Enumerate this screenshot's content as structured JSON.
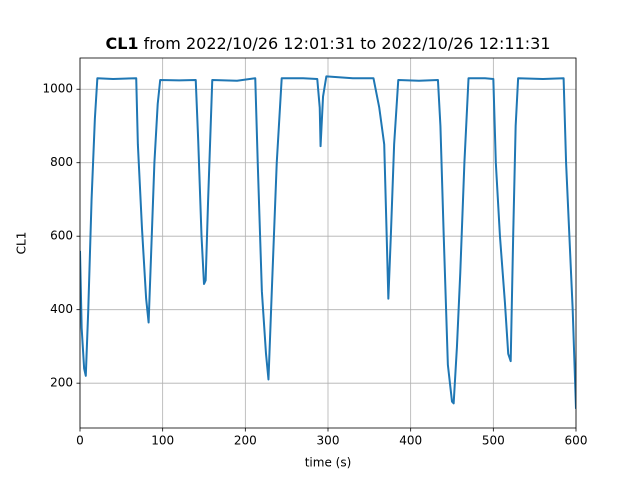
{
  "chart_data": {
    "type": "line",
    "title_parts": [
      "CL1",
      "from 2022/10/26 12:01:31 to 2022/10/26 12:11:31"
    ],
    "xlabel": "time (s)",
    "ylabel": "CL1",
    "x": [
      0,
      2,
      5,
      7,
      10,
      14,
      18,
      21,
      40,
      68,
      70,
      75,
      80,
      83,
      86,
      90,
      94,
      97,
      120,
      140,
      143,
      147,
      150,
      152,
      155,
      160,
      190,
      212,
      215,
      220,
      225,
      228,
      232,
      238,
      244,
      270,
      287,
      290,
      291,
      294,
      298,
      330,
      355,
      362,
      368,
      371,
      373,
      376,
      380,
      385,
      410,
      433,
      436,
      440,
      445,
      450,
      452,
      456,
      460,
      465,
      470,
      490,
      500,
      503,
      508,
      514,
      518,
      521,
      524,
      527,
      530,
      560,
      585,
      588,
      592,
      596,
      600
    ],
    "series": [
      {
        "name": "CL1",
        "color": "#1f77b4",
        "values": [
          560,
          350,
          240,
          220,
          400,
          700,
          920,
          1030,
          1028,
          1030,
          850,
          620,
          430,
          365,
          550,
          800,
          960,
          1025,
          1024,
          1025,
          860,
          600,
          470,
          480,
          700,
          1025,
          1023,
          1030,
          800,
          450,
          280,
          210,
          450,
          800,
          1030,
          1030,
          1028,
          950,
          845,
          980,
          1035,
          1030,
          1030,
          950,
          850,
          600,
          430,
          600,
          850,
          1025,
          1023,
          1025,
          900,
          600,
          250,
          150,
          145,
          300,
          500,
          800,
          1030,
          1030,
          1028,
          800,
          600,
          420,
          280,
          260,
          600,
          900,
          1030,
          1028,
          1030,
          800,
          600,
          400,
          130
        ]
      }
    ],
    "xlim": [
      0,
      600
    ],
    "xticks": [
      0,
      100,
      200,
      300,
      400,
      500,
      600
    ],
    "ylim": [
      78,
      1085
    ],
    "yticks": [
      200,
      400,
      600,
      800,
      1000
    ],
    "grid": true
  }
}
